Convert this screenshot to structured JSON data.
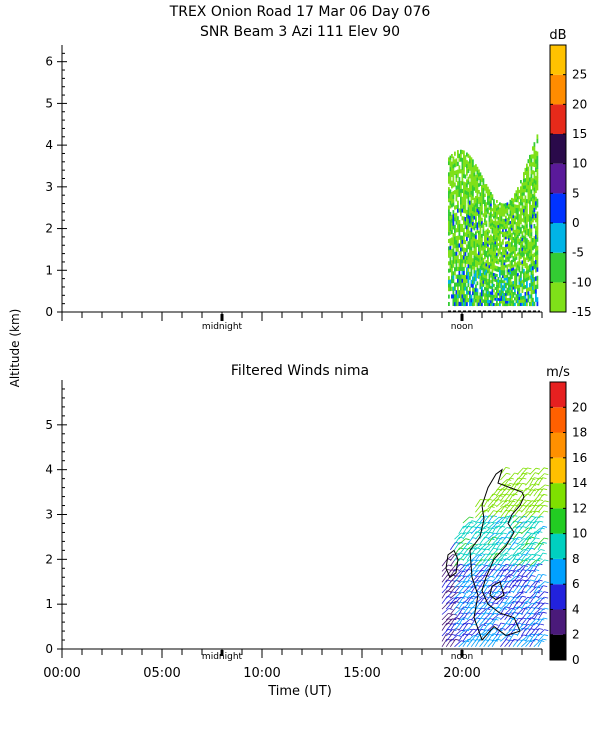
{
  "figure": {
    "title_line1": "TREX Onion Road  17 Mar 06 Day 076",
    "title_line2": "SNR Beam 3 Azi 111 Elev 90",
    "shared_ylabel": "Altitude (km)"
  },
  "chart_data": [
    {
      "type": "heatmap",
      "title": "SNR Beam 3 Azi 111 Elev 90",
      "ylabel": "Altitude (km)",
      "xlim": [
        0,
        24
      ],
      "ylim": [
        0,
        6.4
      ],
      "y_ticks": [
        0,
        1,
        2,
        3,
        4,
        5,
        6
      ],
      "y_tick_labels": [
        "0",
        "1",
        "2",
        "3",
        "4",
        "5",
        "6"
      ],
      "x_markers": [
        {
          "label": "midnight",
          "x": 8.0
        },
        {
          "label": "noon",
          "x": 20.0
        }
      ],
      "colorbar": {
        "unit": "dB",
        "min": -15,
        "max": 30,
        "tick_values": [
          -15,
          -10,
          -5,
          0,
          5,
          10,
          15,
          20,
          25
        ],
        "tick_labels": [
          "-15",
          "-10",
          "-5",
          "0",
          "5",
          "10",
          "15",
          "20",
          "25"
        ],
        "colors": [
          "#7fe019",
          "#33cc33",
          "#00b4e6",
          "#0033ff",
          "#5a1a9a",
          "#2a0a4a",
          "#e62a1a",
          "#ff8c00",
          "#ffc200"
        ]
      },
      "data_region": {
        "x_start": 19.3,
        "x_end": 23.8,
        "y_min": 0.15,
        "y_max_range": [
          2.6,
          4.6
        ]
      },
      "description_values": {
        "dominant_db": -12,
        "near_surface_db": -5,
        "peak_core_db": 2
      }
    },
    {
      "type": "scatter",
      "title": "Filtered Winds nima",
      "xlabel": "Time (UT)",
      "ylabel": "Altitude (km)",
      "xlim": [
        0,
        24
      ],
      "ylim": [
        0,
        6.0
      ],
      "x_ticks": [
        0,
        5,
        10,
        15,
        20
      ],
      "x_tick_labels": [
        "00:00",
        "05:00",
        "10:00",
        "15:00",
        "20:00"
      ],
      "y_ticks": [
        0,
        1,
        2,
        3,
        4,
        5
      ],
      "y_tick_labels": [
        "0",
        "1",
        "2",
        "3",
        "4",
        "5"
      ],
      "x_markers": [
        {
          "label": "midnight",
          "x": 8.0
        },
        {
          "label": "noon",
          "x": 20.0
        }
      ],
      "colorbar": {
        "unit": "m/s",
        "min": 0,
        "max": 22,
        "tick_values": [
          0,
          2,
          4,
          6,
          8,
          10,
          12,
          14,
          16,
          18,
          20
        ],
        "tick_labels": [
          "0",
          "2",
          "4",
          "6",
          "8",
          "10",
          "12",
          "14",
          "16",
          "18",
          "20"
        ],
        "colors": [
          "#000000",
          "#4a1a7a",
          "#2222dd",
          "#00a0ff",
          "#00d0c0",
          "#22cc22",
          "#7fe000",
          "#ffc000",
          "#ff9000",
          "#ff6000",
          "#e62020"
        ]
      },
      "data_region": {
        "x_start": 19.0,
        "x_end": 23.8,
        "y_min": 0.0,
        "y_max": 4.1
      },
      "description_values": {
        "low_level_speed_ms": 6,
        "mid_level_speed_ms": 9,
        "upper_level_speed_ms": 13
      }
    }
  ]
}
